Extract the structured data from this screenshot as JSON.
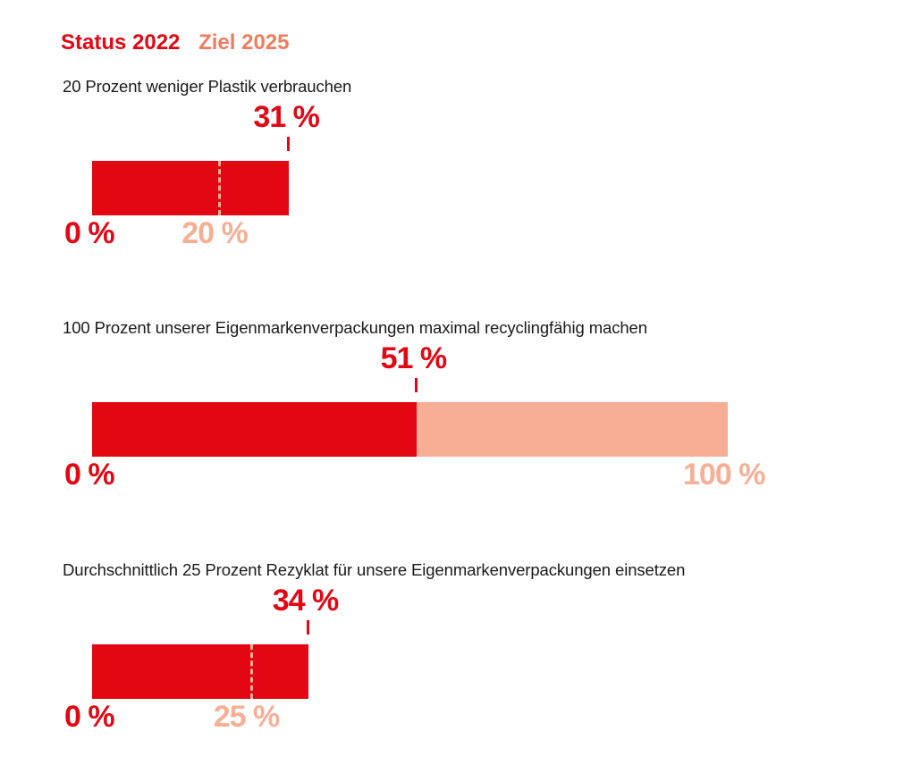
{
  "legend": {
    "status_label": "Status 2022",
    "goal_label": "Ziel 2025",
    "status_color": "#E30613",
    "goal_color": "#F07C5E"
  },
  "chart_data": [
    {
      "type": "bar",
      "title": "20 Prozent weniger Plastik verbrauchen",
      "status_value": 31,
      "status_label": "31 %",
      "goal_value": 20,
      "goal_label": "20 %",
      "zero_label": "0 %",
      "goal_style": "dashed-marker",
      "unit": "%"
    },
    {
      "type": "bar",
      "title": "100 Prozent unserer Eigenmarkenverpackungen maximal recyclingfähig machen",
      "status_value": 51,
      "status_label": "51 %",
      "goal_value": 100,
      "goal_label": "100 %",
      "zero_label": "0 %",
      "goal_style": "background-bar",
      "unit": "%"
    },
    {
      "type": "bar",
      "title": "Durchschnittlich 25 Prozent Rezyklat für unsere Eigenmarkenverpackungen einsetzen",
      "status_value": 34,
      "status_label": "34 %",
      "goal_value": 25,
      "goal_label": "25 %",
      "zero_label": "0 %",
      "goal_style": "dashed-marker",
      "unit": "%"
    }
  ],
  "colors": {
    "status": "#E30613",
    "goal": "#F6AF95"
  }
}
